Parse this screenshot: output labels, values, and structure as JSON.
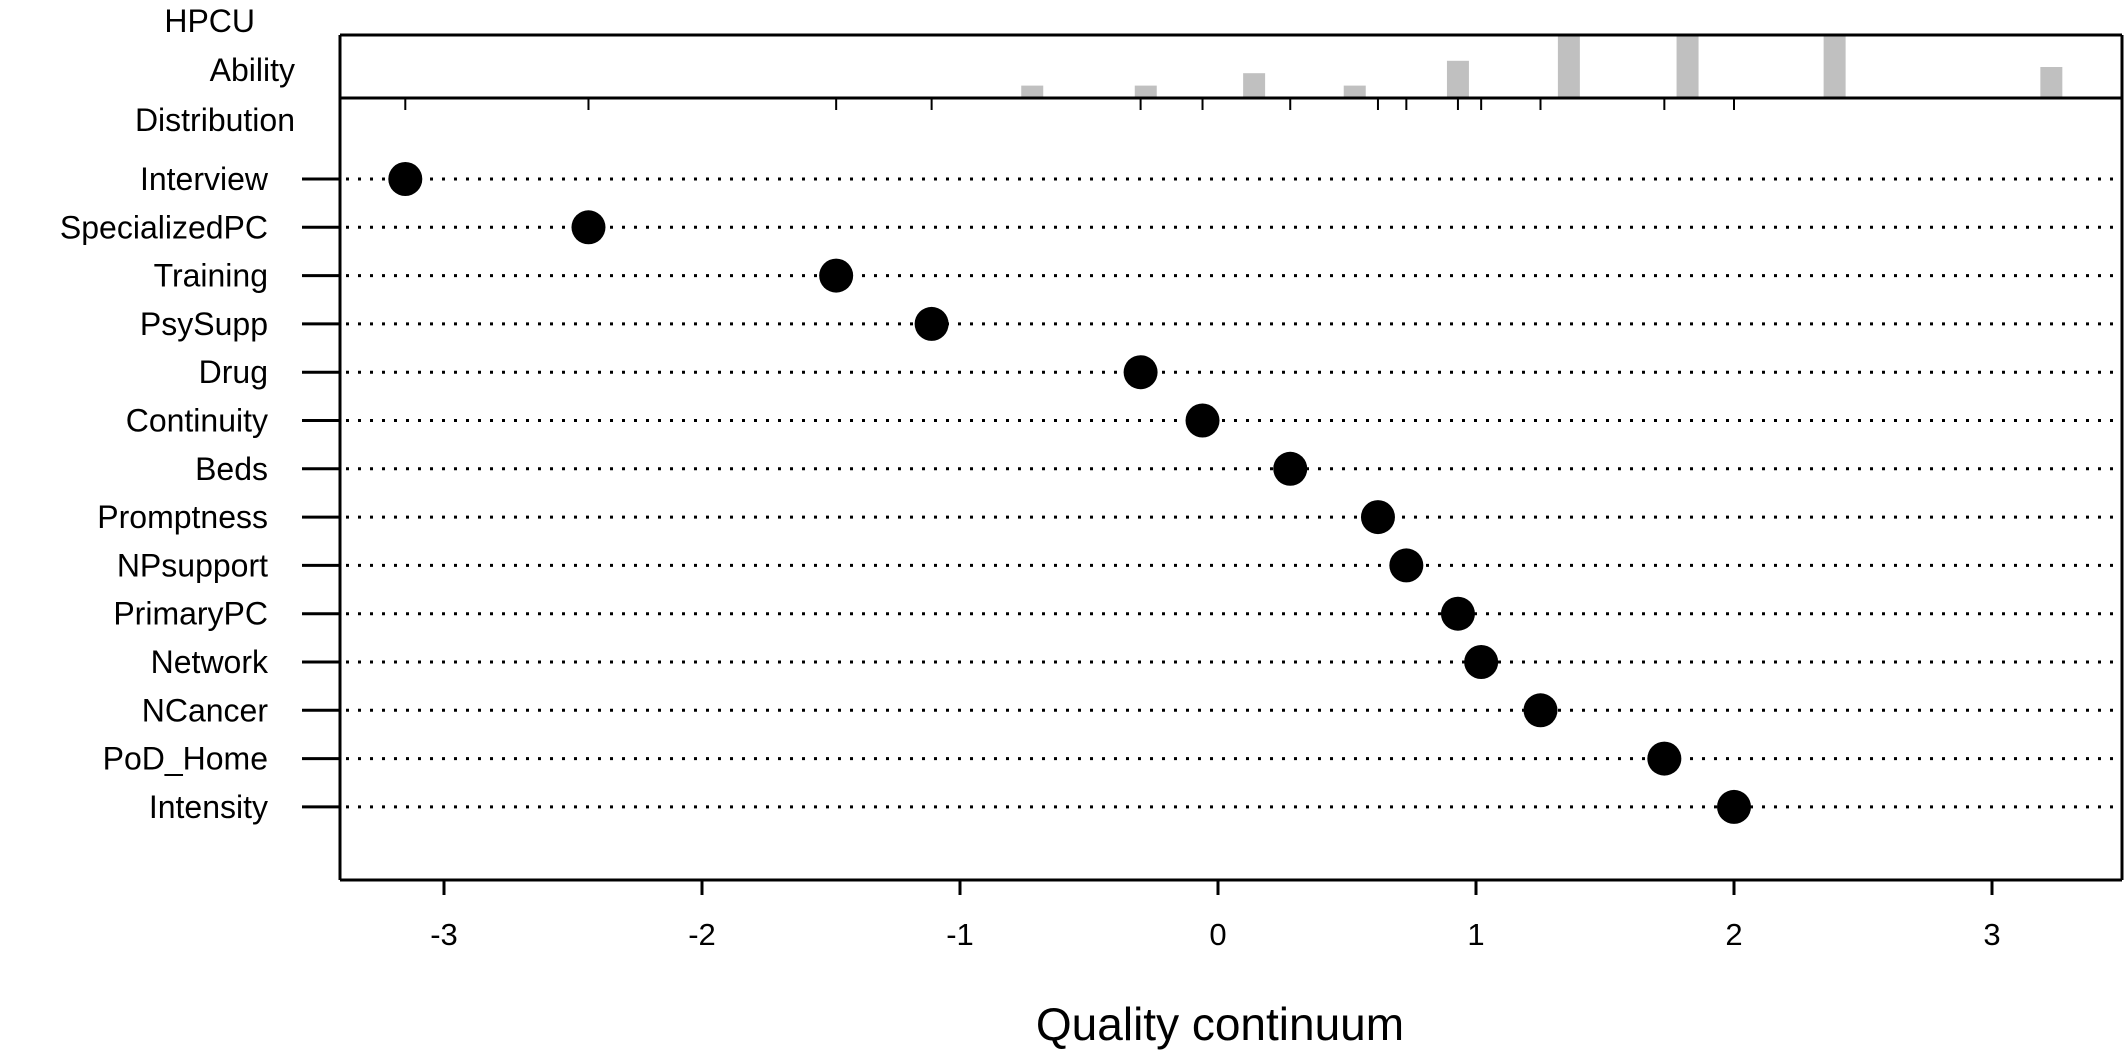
{
  "chart_data": {
    "type": "scatter",
    "subtype": "person-item map (dot plot with ability histogram)",
    "histogram_label": [
      "HPCU",
      "Ability",
      "Distribution"
    ],
    "xlabel": "Quality continuum",
    "x_ticks": [
      -3,
      -2,
      -1,
      0,
      1,
      2,
      3
    ],
    "xlim": [
      -3.4,
      3.5
    ],
    "grid": "dotted horizontal lines per item",
    "items": [
      {
        "name": "Interview",
        "location": -3.15
      },
      {
        "name": "SpecializedPC",
        "location": -2.44
      },
      {
        "name": "Training",
        "location": -1.48
      },
      {
        "name": "PsySupp",
        "location": -1.11
      },
      {
        "name": "Drug",
        "location": -0.3
      },
      {
        "name": "Continuity",
        "location": -0.06
      },
      {
        "name": "Beds",
        "location": 0.28
      },
      {
        "name": "Promptness",
        "location": 0.62
      },
      {
        "name": "NPsupport",
        "location": 0.73
      },
      {
        "name": "PrimaryPC",
        "location": 0.93
      },
      {
        "name": "Network",
        "location": 1.02
      },
      {
        "name": "NCancer",
        "location": 1.25
      },
      {
        "name": "PoD_Home",
        "location": 1.73
      },
      {
        "name": "Intensity",
        "location": 2.0
      }
    ],
    "ability_distribution": [
      {
        "x": -0.72,
        "count": 1
      },
      {
        "x": -0.28,
        "count": 1
      },
      {
        "x": 0.14,
        "count": 2
      },
      {
        "x": 0.53,
        "count": 1
      },
      {
        "x": 0.93,
        "count": 3
      },
      {
        "x": 1.36,
        "count": 5
      },
      {
        "x": 1.82,
        "count": 5
      },
      {
        "x": 2.39,
        "count": 5
      },
      {
        "x": 3.23,
        "count": 2.5
      }
    ],
    "histogram_ymax": 5,
    "colors": {
      "dot": "#000000",
      "bar": "#c0c0c0",
      "axis": "#000000"
    }
  }
}
